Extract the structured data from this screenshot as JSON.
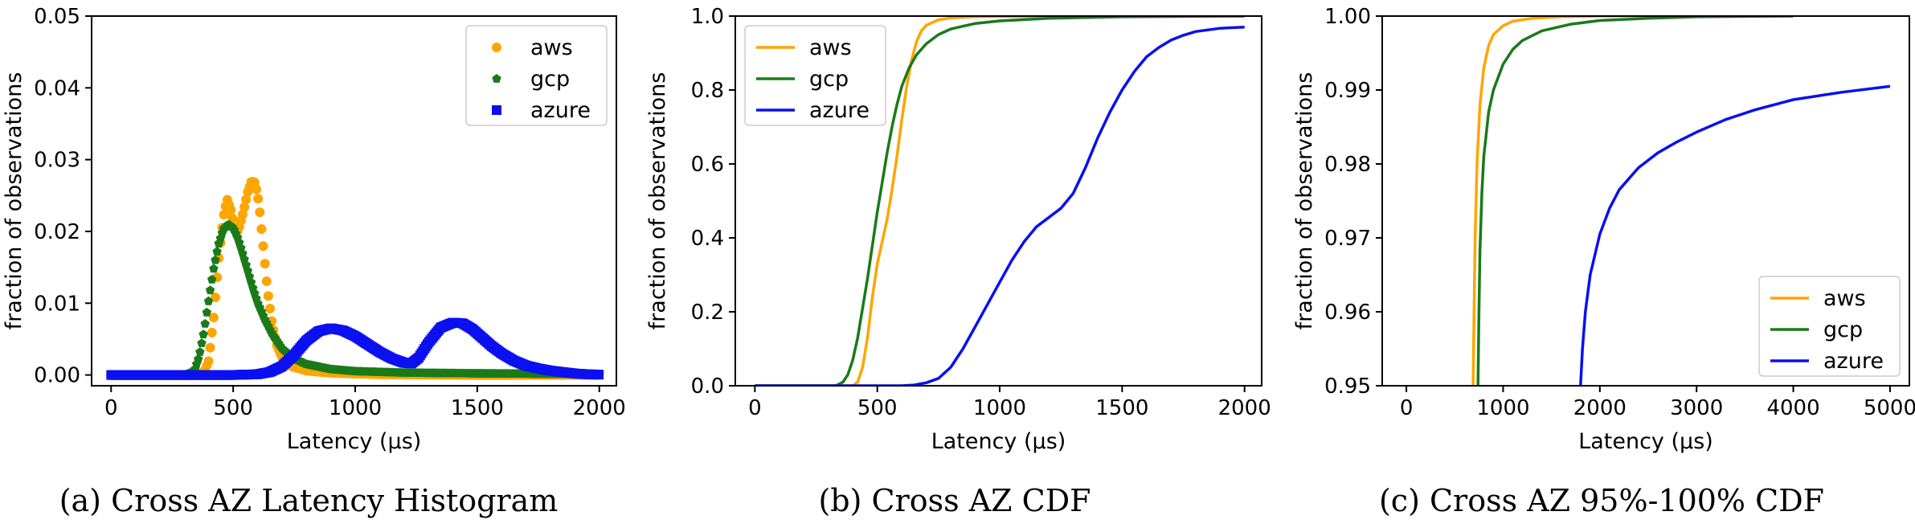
{
  "colors": {
    "aws": "#ffa500",
    "gcp": "#1a7a1a",
    "azure": "#0a10f0"
  },
  "chart_data": [
    {
      "id": "a",
      "type": "scatter",
      "caption": "(a) Cross AZ Latency Histogram",
      "xlabel": "Latency (μs)",
      "ylabel": "fraction of observations",
      "xlim": [
        -80,
        2070
      ],
      "ylim": [
        -0.0015,
        0.05
      ],
      "xticks": [
        0,
        500,
        1000,
        1500,
        2000
      ],
      "yticks": [
        0.0,
        0.01,
        0.02,
        0.03,
        0.04,
        0.05
      ],
      "ytick_decimals": 2,
      "legend": "top-right",
      "series": [
        {
          "name": "aws",
          "color_key": "aws",
          "marker": "circle",
          "x": [
            0,
            300,
            380,
            400,
            420,
            440,
            460,
            475,
            490,
            505,
            520,
            540,
            560,
            575,
            590,
            605,
            620,
            640,
            660,
            680,
            700,
            740,
            800,
            900,
            1100,
            1500,
            2000
          ],
          "y": [
            0,
            0,
            0.0003,
            0.002,
            0.008,
            0.016,
            0.022,
            0.0245,
            0.023,
            0.0205,
            0.02,
            0.0225,
            0.0255,
            0.027,
            0.0268,
            0.024,
            0.019,
            0.012,
            0.007,
            0.004,
            0.0025,
            0.0012,
            0.0006,
            0.0003,
            0.0001,
            0,
            0
          ]
        },
        {
          "name": "gcp",
          "color_key": "gcp",
          "marker": "pentagon",
          "x": [
            0,
            300,
            340,
            360,
            380,
            400,
            420,
            440,
            460,
            480,
            500,
            520,
            540,
            560,
            580,
            600,
            630,
            660,
            700,
            750,
            800,
            900,
            1000,
            1200,
            1500,
            2000
          ],
          "y": [
            0,
            0,
            0.0005,
            0.0025,
            0.006,
            0.0105,
            0.0148,
            0.0182,
            0.0203,
            0.021,
            0.0205,
            0.019,
            0.0168,
            0.0145,
            0.0122,
            0.0101,
            0.0077,
            0.0057,
            0.0037,
            0.0023,
            0.0015,
            0.0008,
            0.0005,
            0.0003,
            0.0002,
            0.0001
          ]
        },
        {
          "name": "azure",
          "color_key": "azure",
          "marker": "square",
          "x": [
            0,
            500,
            600,
            650,
            700,
            750,
            800,
            850,
            900,
            950,
            1000,
            1050,
            1100,
            1150,
            1200,
            1230,
            1260,
            1300,
            1350,
            1400,
            1440,
            1480,
            1520,
            1560,
            1600,
            1650,
            1700,
            1750,
            1800,
            1850,
            1900,
            1950,
            2000
          ],
          "y": [
            0,
            0,
            0.0001,
            0.0004,
            0.0012,
            0.0028,
            0.0048,
            0.0061,
            0.0065,
            0.0062,
            0.0054,
            0.0043,
            0.0032,
            0.0023,
            0.0017,
            0.0016,
            0.0024,
            0.0045,
            0.0066,
            0.0073,
            0.0072,
            0.0064,
            0.0052,
            0.004,
            0.003,
            0.002,
            0.0013,
            0.0009,
            0.0006,
            0.0004,
            0.0002,
            0.0001,
            5e-05
          ]
        }
      ]
    },
    {
      "id": "b",
      "type": "line",
      "caption": "(b) Cross AZ CDF",
      "xlabel": "Latency (μs)",
      "ylabel": "fraction of observations",
      "xlim": [
        -80,
        2070
      ],
      "ylim": [
        0,
        1.0
      ],
      "xticks": [
        0,
        500,
        1000,
        1500,
        2000
      ],
      "yticks": [
        0.0,
        0.2,
        0.4,
        0.6,
        0.8,
        1.0
      ],
      "ytick_decimals": 1,
      "legend": "top-left",
      "series": [
        {
          "name": "aws",
          "color_key": "aws",
          "x": [
            0,
            400,
            420,
            440,
            460,
            480,
            500,
            520,
            540,
            560,
            580,
            600,
            620,
            640,
            660,
            680,
            700,
            750,
            800,
            900,
            1000,
            2000
          ],
          "y": [
            0,
            0,
            0.01,
            0.05,
            0.13,
            0.24,
            0.33,
            0.39,
            0.45,
            0.53,
            0.62,
            0.72,
            0.81,
            0.88,
            0.93,
            0.96,
            0.975,
            0.99,
            0.995,
            0.998,
            0.999,
            1.0
          ]
        },
        {
          "name": "gcp",
          "color_key": "gcp",
          "x": [
            0,
            330,
            360,
            380,
            400,
            420,
            440,
            460,
            480,
            500,
            520,
            540,
            560,
            580,
            600,
            630,
            660,
            700,
            750,
            800,
            900,
            1000,
            1200,
            1500,
            2000
          ],
          "y": [
            0,
            0,
            0.01,
            0.03,
            0.07,
            0.13,
            0.21,
            0.29,
            0.38,
            0.47,
            0.55,
            0.63,
            0.7,
            0.76,
            0.81,
            0.86,
            0.895,
            0.925,
            0.95,
            0.965,
            0.98,
            0.987,
            0.994,
            0.998,
            1.0
          ]
        },
        {
          "name": "azure",
          "color_key": "azure",
          "x": [
            0,
            600,
            650,
            700,
            750,
            800,
            850,
            900,
            950,
            1000,
            1050,
            1100,
            1150,
            1200,
            1250,
            1300,
            1350,
            1400,
            1450,
            1500,
            1550,
            1600,
            1650,
            1700,
            1750,
            1800,
            1900,
            2000
          ],
          "y": [
            0,
            0,
            0.002,
            0.008,
            0.02,
            0.05,
            0.1,
            0.16,
            0.22,
            0.28,
            0.34,
            0.39,
            0.43,
            0.455,
            0.48,
            0.52,
            0.59,
            0.67,
            0.74,
            0.8,
            0.85,
            0.89,
            0.915,
            0.935,
            0.948,
            0.958,
            0.967,
            0.97
          ]
        }
      ]
    },
    {
      "id": "c",
      "type": "line",
      "caption": "(c) Cross AZ 95%-100% CDF",
      "xlabel": "Latency (μs)",
      "ylabel": "fraction of observations",
      "xlim": [
        -250,
        5200
      ],
      "ylim": [
        0.95,
        1.0
      ],
      "xticks": [
        0,
        1000,
        2000,
        3000,
        4000,
        5000
      ],
      "yticks": [
        0.95,
        0.96,
        0.97,
        0.98,
        0.99,
        1.0
      ],
      "ytick_decimals": 2,
      "legend": "bottom-right",
      "series": [
        {
          "name": "aws",
          "color_key": "aws",
          "x": [
            690,
            700,
            710,
            730,
            760,
            800,
            850,
            900,
            1000,
            1100,
            1300,
            1600,
            2000,
            3000
          ],
          "y": [
            0.95,
            0.96,
            0.97,
            0.98,
            0.988,
            0.993,
            0.996,
            0.9975,
            0.9987,
            0.9993,
            0.9997,
            0.9999,
            1.0,
            1.0
          ]
        },
        {
          "name": "gcp",
          "color_key": "gcp",
          "x": [
            740,
            750,
            760,
            780,
            800,
            850,
            900,
            1000,
            1100,
            1200,
            1400,
            1700,
            2000,
            2500,
            3000,
            4000
          ],
          "y": [
            0.95,
            0.96,
            0.968,
            0.976,
            0.981,
            0.987,
            0.99,
            0.9935,
            0.9955,
            0.9967,
            0.998,
            0.9989,
            0.9994,
            0.9997,
            0.9999,
            1.0
          ]
        },
        {
          "name": "azure",
          "color_key": "azure",
          "x": [
            1800,
            1820,
            1850,
            1900,
            2000,
            2100,
            2200,
            2400,
            2600,
            2800,
            3000,
            3300,
            3600,
            4000,
            4500,
            5000
          ],
          "y": [
            0.95,
            0.955,
            0.96,
            0.965,
            0.9705,
            0.974,
            0.9765,
            0.9795,
            0.9815,
            0.983,
            0.9843,
            0.986,
            0.9873,
            0.9887,
            0.9897,
            0.9905
          ]
        }
      ]
    }
  ]
}
